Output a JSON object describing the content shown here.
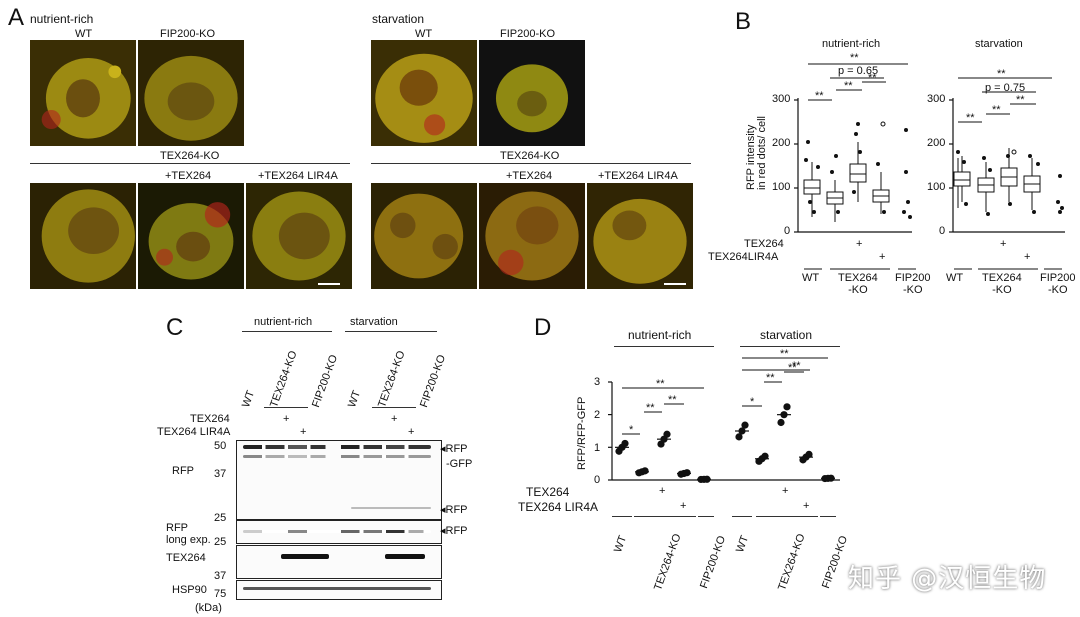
{
  "panelA": {
    "label": "A",
    "conditions": [
      "nutrient-rich",
      "starvation"
    ],
    "row1_labels": [
      "WT",
      "FIP200-KO"
    ],
    "group_label": "TEX264-KO",
    "row2_labels": [
      "+TEX264",
      "+TEX264 LIR4A"
    ]
  },
  "panelB": {
    "label": "B",
    "ylabel": "RFP intensity\nin red dots/ cell",
    "yticks": [
      "300",
      "200",
      "100",
      "0"
    ],
    "conditions": [
      "nutrient-rich",
      "starvation"
    ],
    "sig": {
      "top": "**",
      "p_mid_nr": "p = 0.65",
      "p_mid_st": "p = 0.75",
      "s1": "**",
      "s2": "**",
      "s3": "**"
    },
    "row_tex264": "TEX264",
    "row_lir": "TEX264LIR4A",
    "plus": "+",
    "xlabels": [
      "WT",
      "TEX264\n-KO",
      "FIP200\n-KO"
    ]
  },
  "panelC": {
    "label": "C",
    "conditions": [
      "nutrient-rich",
      "starvation"
    ],
    "lanes": [
      "WT",
      "TEX264-KO",
      "FIP200-KO"
    ],
    "row_tex264": "TEX264",
    "row_lir": "TEX264 LIR4A",
    "plus": "+",
    "markers": [
      "50",
      "37",
      "25",
      "25",
      "37",
      "75"
    ],
    "kda": "(kDa)",
    "blot_labels": [
      "RFP",
      "RFP\nlong exp.",
      "TEX264",
      "HSP90"
    ],
    "band_labels": [
      "◂RFP",
      "-GFP",
      "◂RFP",
      "◂RFP"
    ]
  },
  "panelD": {
    "label": "D",
    "ylabel": "RFP/RFP-GFP",
    "yticks": [
      "3",
      "2",
      "1",
      "0"
    ],
    "conditions": [
      "nutrient-rich",
      "starvation"
    ],
    "sig": {
      "s": "*",
      "d": "**"
    },
    "row_tex264": "TEX264",
    "row_lir": "TEX264 LIR4A",
    "plus": "+",
    "xlabels": [
      "WT",
      "TEX264-KO",
      "FIP200-KO"
    ],
    "chart_data": {
      "type": "scatter",
      "title": "",
      "xlabel": "",
      "ylabel": "RFP/RFP-GFP",
      "ylim": [
        0,
        3
      ],
      "categories": [
        "WT",
        "TEX264-KO",
        "TEX264-KO +TEX264",
        "TEX264-KO +TEX264 LIR4A",
        "FIP200-KO"
      ],
      "series": [
        {
          "values": [
            1.0,
            0.25,
            1.25,
            0.2,
            0.02
          ]
        },
        {
          "values": [
            1.5,
            0.65,
            2.0,
            0.7,
            0.05
          ]
        }
      ]
    }
  },
  "watermark": "知乎 @汉恒生物"
}
